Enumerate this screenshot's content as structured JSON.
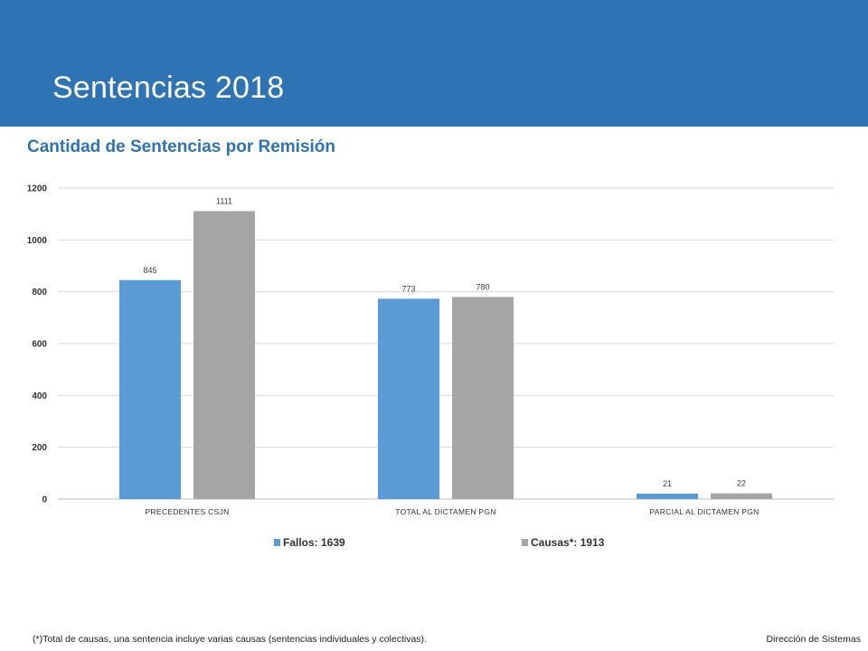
{
  "slide": {
    "title": "Sentencias 2018",
    "footnote": "(*)Total de causas, una sentencia incluye varias causas (sentencias individuales y colectivas).",
    "footer_right": "Dirección de Sistemas"
  },
  "colors": {
    "banner": "#2e74b5",
    "series_fallos": "#5b9bd5",
    "series_causas": "#a5a5a5",
    "chart_title": "#2e74b5"
  },
  "chart_data": {
    "type": "bar",
    "title": "Cantidad de Sentencias por Remisión",
    "categories": [
      "PRECEDENTES CSJN",
      "TOTAL AL DICTAMEN PGN",
      "PARCIAL AL DICTAMEN PGN"
    ],
    "series": [
      {
        "name": "Fallos: 1639",
        "values": [
          845,
          773,
          21
        ]
      },
      {
        "name": "Causas*: 1913",
        "values": [
          1111,
          780,
          22
        ]
      }
    ],
    "yticks": [
      0,
      200,
      400,
      600,
      800,
      1000,
      1200
    ],
    "ylim": [
      0,
      1200
    ],
    "grid": true,
    "legend": "bottom",
    "xlabel": "",
    "ylabel": ""
  }
}
